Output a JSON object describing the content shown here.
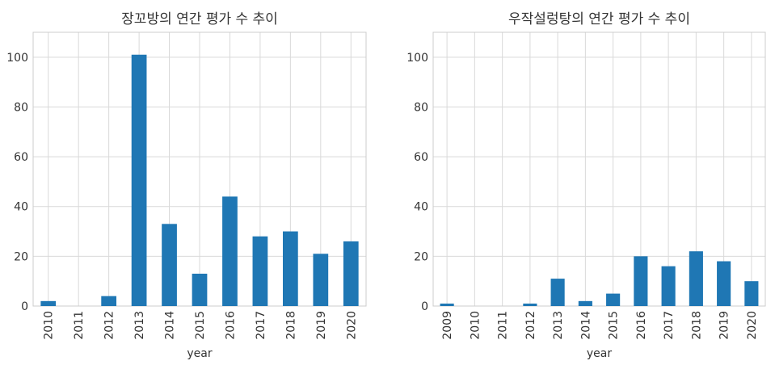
{
  "chart_data": [
    {
      "type": "bar",
      "title": "장꼬방의 연간 평가 수 추이",
      "xlabel": "year",
      "ylabel": "",
      "categories": [
        "2010",
        "2011",
        "2012",
        "2013",
        "2014",
        "2015",
        "2016",
        "2017",
        "2018",
        "2019",
        "2020"
      ],
      "values": [
        2,
        0,
        4,
        101,
        33,
        13,
        44,
        28,
        30,
        21,
        26
      ],
      "ylim": [
        0,
        110
      ],
      "yticks": [
        0,
        20,
        40,
        60,
        80,
        100
      ],
      "grid": true,
      "color": "#1f77b4"
    },
    {
      "type": "bar",
      "title": "우작설렁탕의 연간 평가 수 추이",
      "xlabel": "year",
      "ylabel": "",
      "categories": [
        "2009",
        "2010",
        "2011",
        "2012",
        "2013",
        "2014",
        "2015",
        "2016",
        "2017",
        "2018",
        "2019",
        "2020"
      ],
      "values": [
        1,
        0,
        0,
        1,
        11,
        2,
        5,
        20,
        16,
        22,
        18,
        10
      ],
      "ylim": [
        0,
        110
      ],
      "yticks": [
        0,
        20,
        40,
        60,
        80,
        100
      ],
      "grid": true,
      "color": "#1f77b4"
    }
  ]
}
